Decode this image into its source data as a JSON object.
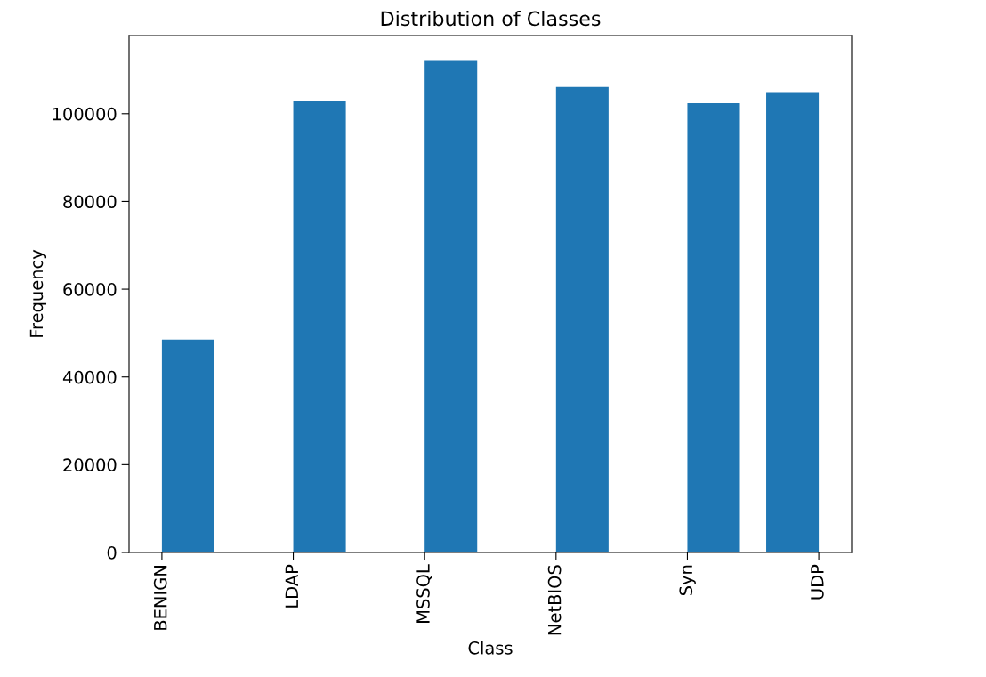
{
  "chart_data": {
    "type": "bar",
    "title": "Distribution of Classes",
    "xlabel": "Class",
    "ylabel": "Frequency",
    "categories": [
      "BENIGN",
      "LDAP",
      "MSSQL",
      "NetBIOS",
      "Syn",
      "UDP"
    ],
    "values": [
      48500,
      102800,
      112000,
      106100,
      102400,
      104900
    ],
    "color": "#1f77b4",
    "ylim": [
      0,
      117800
    ],
    "yticks": [
      0,
      20000,
      40000,
      60000,
      80000,
      100000
    ]
  }
}
